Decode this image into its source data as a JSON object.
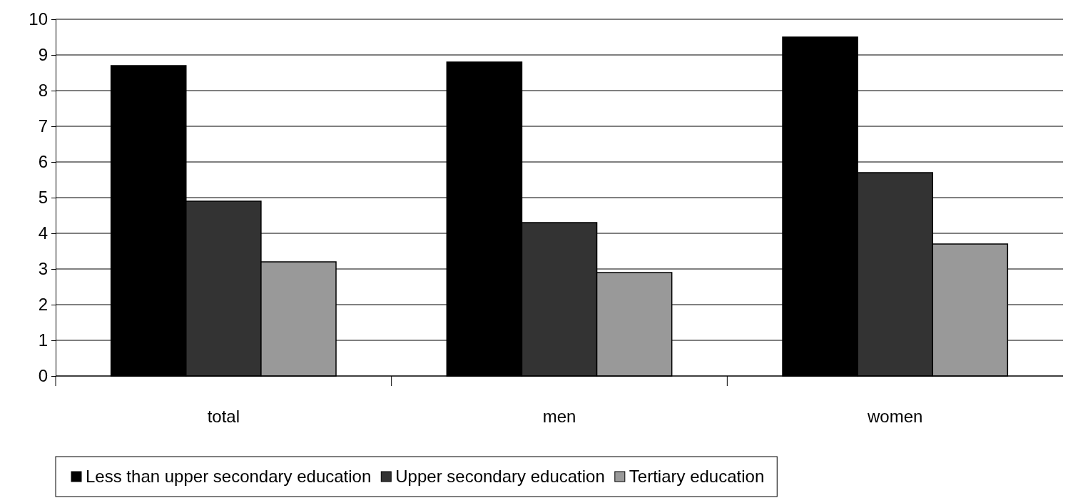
{
  "chart_data": {
    "type": "bar",
    "categories": [
      "total",
      "men",
      "women"
    ],
    "series": [
      {
        "name": "Less than upper secondary education",
        "color": "#000000",
        "values": [
          8.7,
          8.8,
          9.5
        ]
      },
      {
        "name": "Upper secondary education",
        "color": "#333333",
        "values": [
          4.9,
          4.3,
          5.7
        ]
      },
      {
        "name": "Tertiary education",
        "color": "#999999",
        "values": [
          3.2,
          2.9,
          3.7
        ]
      }
    ],
    "ylim": [
      0,
      10
    ],
    "yticks": [
      0,
      1,
      2,
      3,
      4,
      5,
      6,
      7,
      8,
      9,
      10
    ],
    "grid": "y",
    "legend": "bottom"
  }
}
